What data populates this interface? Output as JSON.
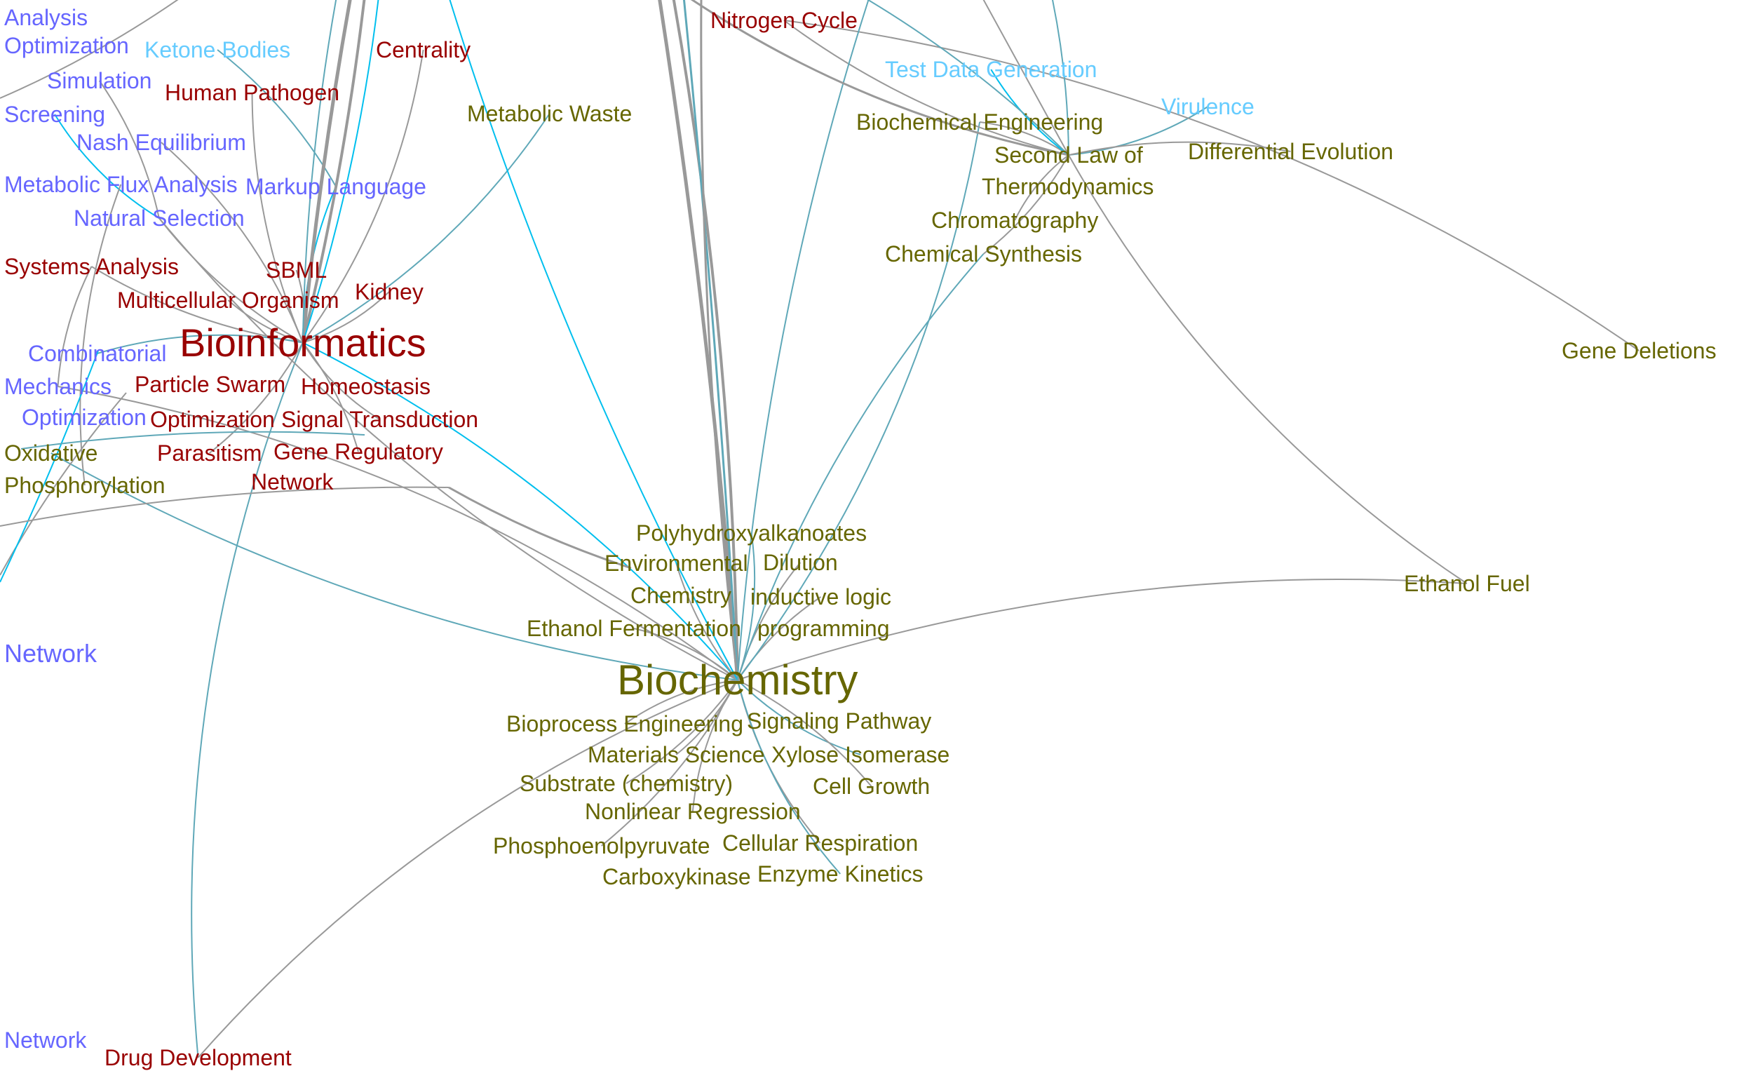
{
  "colors": {
    "red": "#990000",
    "olive": "#666600",
    "blue": "#6666ff",
    "lightblue": "#66ccff",
    "edge_gray": "#999999",
    "edge_cyan": "#00bfee",
    "edge_teal": "#5fa8b8"
  },
  "nodes": [
    {
      "label": "Nitrogen Cycle",
      "group": "red"
    },
    {
      "label": "Centrality",
      "group": "red"
    },
    {
      "label": "Human Pathogen",
      "group": "red"
    },
    {
      "label": "SBML",
      "group": "red"
    },
    {
      "label": "Multicellular Organism",
      "group": "red"
    },
    {
      "label": "Kidney",
      "group": "red"
    },
    {
      "label": "Particle Swarm",
      "group": "red"
    },
    {
      "label": "Optimization",
      "group": "red"
    },
    {
      "label": "Homeostasis",
      "group": "red"
    },
    {
      "label": "Bioinformatics",
      "group": "red"
    },
    {
      "label": "Systems Analysis",
      "group": "red"
    },
    {
      "label": "Parasitism",
      "group": "red"
    },
    {
      "label": "Signal Transduction",
      "group": "red"
    },
    {
      "label": "Gene Regulatory",
      "group": "red"
    },
    {
      "label": "Network",
      "group": "red"
    },
    {
      "label": "Drug Development",
      "group": "red"
    },
    {
      "label": "Analysis",
      "group": "blue"
    },
    {
      "label": "Optimization",
      "group": "blue"
    },
    {
      "label": "Simulation",
      "group": "blue"
    },
    {
      "label": "Screening",
      "group": "blue"
    },
    {
      "label": "Nash Equilibrium",
      "group": "blue"
    },
    {
      "label": "Metabolic Flux Analysis",
      "group": "blue"
    },
    {
      "label": "Natural Selection",
      "group": "blue"
    },
    {
      "label": "Markup Language",
      "group": "blue"
    },
    {
      "label": "Combinatorial",
      "group": "blue"
    },
    {
      "label": "Optimization",
      "group": "blue"
    },
    {
      "label": "Mechanics",
      "group": "blue"
    },
    {
      "label": "Network",
      "group": "blue"
    },
    {
      "label": "Network",
      "group": "blue"
    },
    {
      "label": "Ketone Bodies",
      "group": "lightblue"
    },
    {
      "label": "Test Data Generation",
      "group": "lightblue"
    },
    {
      "label": "Virulence",
      "group": "lightblue"
    },
    {
      "label": "Metabolic Waste",
      "group": "olive"
    },
    {
      "label": "Biochemical Engineering",
      "group": "olive"
    },
    {
      "label": "Second Law of",
      "group": "olive"
    },
    {
      "label": "Thermodynamics",
      "group": "olive"
    },
    {
      "label": "Chromatography",
      "group": "olive"
    },
    {
      "label": "Differential Evolution",
      "group": "olive"
    },
    {
      "label": "Chemical Synthesis",
      "group": "olive"
    },
    {
      "label": "Gene Deletions",
      "group": "olive"
    },
    {
      "label": "Ethanol Fuel",
      "group": "olive"
    },
    {
      "label": "Oxidative",
      "group": "olive"
    },
    {
      "label": "Phosphorylation",
      "group": "olive"
    },
    {
      "label": "Environmental",
      "group": "olive"
    },
    {
      "label": "Chemistry",
      "group": "olive"
    },
    {
      "label": "Polyhydroxyalkanoates",
      "group": "olive"
    },
    {
      "label": "inductive logic",
      "group": "olive"
    },
    {
      "label": "programming",
      "group": "olive"
    },
    {
      "label": "Ethanol Fermentation",
      "group": "olive"
    },
    {
      "label": "Dilution",
      "group": "olive"
    },
    {
      "label": "Bioprocess Engineering",
      "group": "olive"
    },
    {
      "label": "Materials Science",
      "group": "olive"
    },
    {
      "label": "Signaling Pathway",
      "group": "olive"
    },
    {
      "label": "Xylose Isomerase",
      "group": "olive"
    },
    {
      "label": "Biochemistry",
      "group": "olive"
    },
    {
      "label": "Substrate (chemistry)",
      "group": "olive"
    },
    {
      "label": "Nonlinear Regression",
      "group": "olive"
    },
    {
      "label": "Cell Growth",
      "group": "olive"
    },
    {
      "label": "Cellular Respiration",
      "group": "olive"
    },
    {
      "label": "Phosphoenolpyruvate",
      "group": "olive"
    },
    {
      "label": "Carboxykinase",
      "group": "olive"
    },
    {
      "label": "Enzyme Kinetics",
      "group": "olive"
    }
  ],
  "edges": [
    [
      "Bioinformatics",
      "Human Pathogen",
      "gray"
    ],
    [
      "Bioinformatics",
      "SBML",
      "gray"
    ],
    [
      "Bioinformatics",
      "Multicellular Organism",
      "gray"
    ],
    [
      "Bioinformatics",
      "Kidney",
      "gray"
    ],
    [
      "Bioinformatics",
      "Natural Selection",
      "gray"
    ],
    [
      "Bioinformatics",
      "Nash Equilibrium",
      "gray"
    ],
    [
      "Bioinformatics",
      "Markup Language",
      "cyan"
    ],
    [
      "Bioinformatics",
      "Centrality",
      "gray"
    ],
    [
      "Bioinformatics",
      "Parasitism",
      "gray"
    ],
    [
      "Bioinformatics",
      "Signal Transduction",
      "gray"
    ],
    [
      "Bioinformatics",
      "Gene Regulatory",
      "gray"
    ],
    [
      "Bioinformatics",
      "Metabolic Waste",
      "teal"
    ],
    [
      "Bioinformatics",
      "Biochemistry",
      "cyan"
    ],
    [
      "Bioinformatics",
      "Drug Development",
      "teal"
    ],
    [
      "Bioinformatics",
      "Systems Analysis",
      "gray"
    ],
    [
      "Bioinformatics",
      "Combinatorial",
      "teal"
    ],
    [
      "Biochemistry",
      "Environmental",
      "gray"
    ],
    [
      "Biochemistry",
      "Polyhydroxyalkanoates",
      "teal"
    ],
    [
      "Biochemistry",
      "inductive logic",
      "gray"
    ],
    [
      "Biochemistry",
      "Ethanol Fermentation",
      "gray"
    ],
    [
      "Biochemistry",
      "Dilution",
      "gray"
    ],
    [
      "Biochemistry",
      "Bioprocess Engineering",
      "gray"
    ],
    [
      "Biochemistry",
      "Materials Science",
      "gray"
    ],
    [
      "Biochemistry",
      "Xylose Isomerase",
      "teal"
    ],
    [
      "Biochemistry",
      "Substrate (chemistry)",
      "gray"
    ],
    [
      "Biochemistry",
      "Nonlinear Regression",
      "gray"
    ],
    [
      "Biochemistry",
      "Cell Growth",
      "gray"
    ],
    [
      "Biochemistry",
      "Cellular Respiration",
      "gray"
    ],
    [
      "Biochemistry",
      "Phosphoenolpyruvate",
      "gray"
    ],
    [
      "Biochemistry",
      "Enzyme Kinetics",
      "teal"
    ],
    [
      "Biochemistry",
      "Ethanol Fuel",
      "gray"
    ],
    [
      "Biochemistry",
      "Drug Development",
      "gray"
    ],
    [
      "Biochemistry",
      "Chemical Synthesis",
      "teal"
    ],
    [
      "Biochemistry",
      "Biochemical Engineering",
      "teal"
    ],
    [
      "Biochemistry",
      "Natural Selection",
      "gray"
    ],
    [
      "Biochemistry",
      "Mechanics",
      "gray"
    ],
    [
      "Biochemistry",
      "Oxidative",
      "teal"
    ],
    [
      "Second Law of",
      "Biochemical Engineering",
      "gray"
    ],
    [
      "Second Law of",
      "Test Data Generation",
      "cyan"
    ],
    [
      "Second Law of",
      "Virulence",
      "teal"
    ],
    [
      "Second Law of",
      "Differential Evolution",
      "gray"
    ],
    [
      "Second Law of",
      "Chromatography",
      "gray"
    ],
    [
      "Second Law of",
      "Chemical Synthesis",
      "gray"
    ],
    [
      "Second Law of",
      "Ethanol Fuel",
      "gray"
    ],
    [
      "Second Law of",
      "Nitrogen Cycle",
      "gray"
    ],
    [
      "Gene Deletions",
      "Nitrogen Cycle",
      "gray"
    ],
    [
      "Simulation",
      "Natural Selection",
      "gray"
    ],
    [
      "Screening",
      "Natural Selection",
      "cyan"
    ],
    [
      "Ketone Bodies",
      "Markup Language",
      "teal"
    ],
    [
      "Metabolic Flux Analysis",
      "Phosphorylation",
      "gray"
    ],
    [
      "Mechanics",
      "Systems Analysis",
      "gray"
    ]
  ]
}
